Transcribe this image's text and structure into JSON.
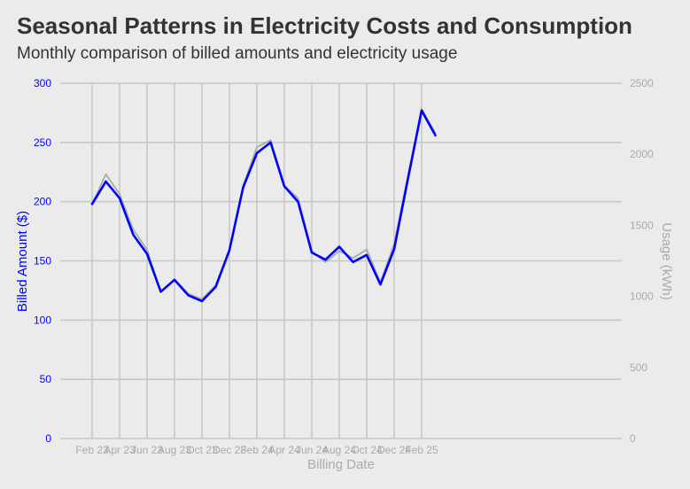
{
  "chart_data": {
    "type": "line",
    "title": "Seasonal Patterns in Electricity Costs and Consumption",
    "subtitle": "Monthly comparison of billed amounts and electricity usage",
    "xlabel": "Billing Date",
    "ylabel_left": "Billed Amount ($)",
    "ylabel_right": "Usage (kWh)",
    "ylim_left": [
      0,
      300
    ],
    "ylim_right": [
      0,
      2500
    ],
    "yticks_left": [
      0,
      50,
      100,
      150,
      200,
      250,
      300
    ],
    "yticks_right": [
      0,
      500,
      1000,
      1500,
      2000,
      2500
    ],
    "grid": true,
    "x_tick_labels": [
      "Feb 23",
      "Apr 23",
      "Jun 23",
      "Aug 23",
      "Oct 23",
      "Dec 23",
      "Feb 24",
      "Apr 24",
      "Jun 24",
      "Aug 24",
      "Oct 24",
      "Dec 24",
      "Feb 25"
    ],
    "x": [
      "2023-02",
      "2023-03",
      "2023-04",
      "2023-05",
      "2023-06",
      "2023-07",
      "2023-08",
      "2023-09",
      "2023-10",
      "2023-11",
      "2023-12",
      "2024-01",
      "2024-02",
      "2024-03",
      "2024-04",
      "2024-05",
      "2024-06",
      "2024-07",
      "2024-08",
      "2024-09",
      "2024-10",
      "2024-11",
      "2024-12",
      "2025-01",
      "2025-02",
      "2025-03"
    ],
    "series": [
      {
        "axis": "left",
        "color": "#0000ff",
        "values": [
          198,
          217,
          203,
          172,
          156,
          124,
          134,
          121,
          116,
          128,
          159,
          212,
          241,
          250,
          213,
          200,
          157,
          151,
          162,
          149,
          155,
          130,
          160,
          219,
          277,
          256
        ]
      },
      {
        "axis": "right",
        "color": "#aaaaaa",
        "values": [
          1650,
          1860,
          1720,
          1470,
          1330,
          1030,
          1120,
          1020,
          980,
          1080,
          1330,
          1780,
          2050,
          2100,
          1780,
          1690,
          1320,
          1240,
          1320,
          1270,
          1330,
          1100,
          1370,
          1850,
          2320,
          2150
        ]
      }
    ]
  }
}
